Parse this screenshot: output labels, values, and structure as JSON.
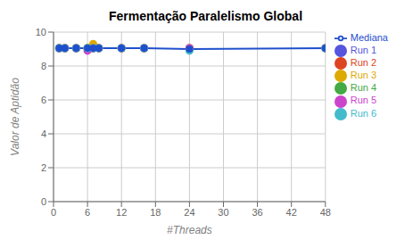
{
  "chart_data": {
    "type": "scatter",
    "title": "Fermentação Paralelismo Global",
    "x_label": "#Threads",
    "y_label": "Valor de Aptidão",
    "x": [
      1,
      2,
      4,
      6,
      7,
      8,
      12,
      16,
      24,
      48
    ],
    "series": [
      {
        "name": "Run 1",
        "color": "#5555dd",
        "type": "scatter",
        "values": [
          9.05,
          9.05,
          9.05,
          9.05,
          9.05,
          9.05,
          9.05,
          9.05,
          9.0,
          9.05
        ]
      },
      {
        "name": "Run 2",
        "color": "#dd4422",
        "type": "scatter",
        "values": [
          9.05,
          9.05,
          9.05,
          9.05,
          9.05,
          9.05,
          9.05,
          9.05,
          9.05,
          9.05
        ]
      },
      {
        "name": "Run 3",
        "color": "#ddaa00",
        "type": "scatter",
        "values": [
          9.05,
          9.05,
          9.05,
          9.05,
          9.3,
          9.05,
          9.05,
          9.05,
          9.05,
          9.05
        ]
      },
      {
        "name": "Run 4",
        "color": "#44aa44",
        "type": "scatter",
        "values": [
          9.05,
          9.05,
          9.05,
          9.05,
          9.05,
          9.05,
          9.05,
          9.05,
          9.05,
          9.05
        ]
      },
      {
        "name": "Run 5",
        "color": "#cc44cc",
        "type": "scatter",
        "values": [
          9.05,
          9.05,
          9.05,
          8.9,
          9.05,
          9.05,
          9.05,
          9.05,
          9.05,
          9.05
        ]
      },
      {
        "name": "Run 6",
        "color": "#44bbcc",
        "type": "scatter",
        "values": [
          9.05,
          9.05,
          9.05,
          9.05,
          9.05,
          9.05,
          9.05,
          9.05,
          8.9,
          9.05
        ]
      },
      {
        "name": "Mediana",
        "color": "#1f4fcc",
        "type": "line",
        "marker": "circle",
        "values": [
          9.05,
          9.05,
          9.05,
          9.05,
          9.05,
          9.05,
          9.05,
          9.05,
          9.0,
          9.05
        ]
      }
    ],
    "xlim": [
      0,
      48
    ],
    "ylim": [
      0,
      10
    ],
    "xticks": [
      0,
      6,
      12,
      18,
      24,
      30,
      36,
      42,
      48
    ],
    "yticks": [
      0,
      2,
      4,
      6,
      8,
      10
    ],
    "grid": true,
    "legend": "right"
  }
}
